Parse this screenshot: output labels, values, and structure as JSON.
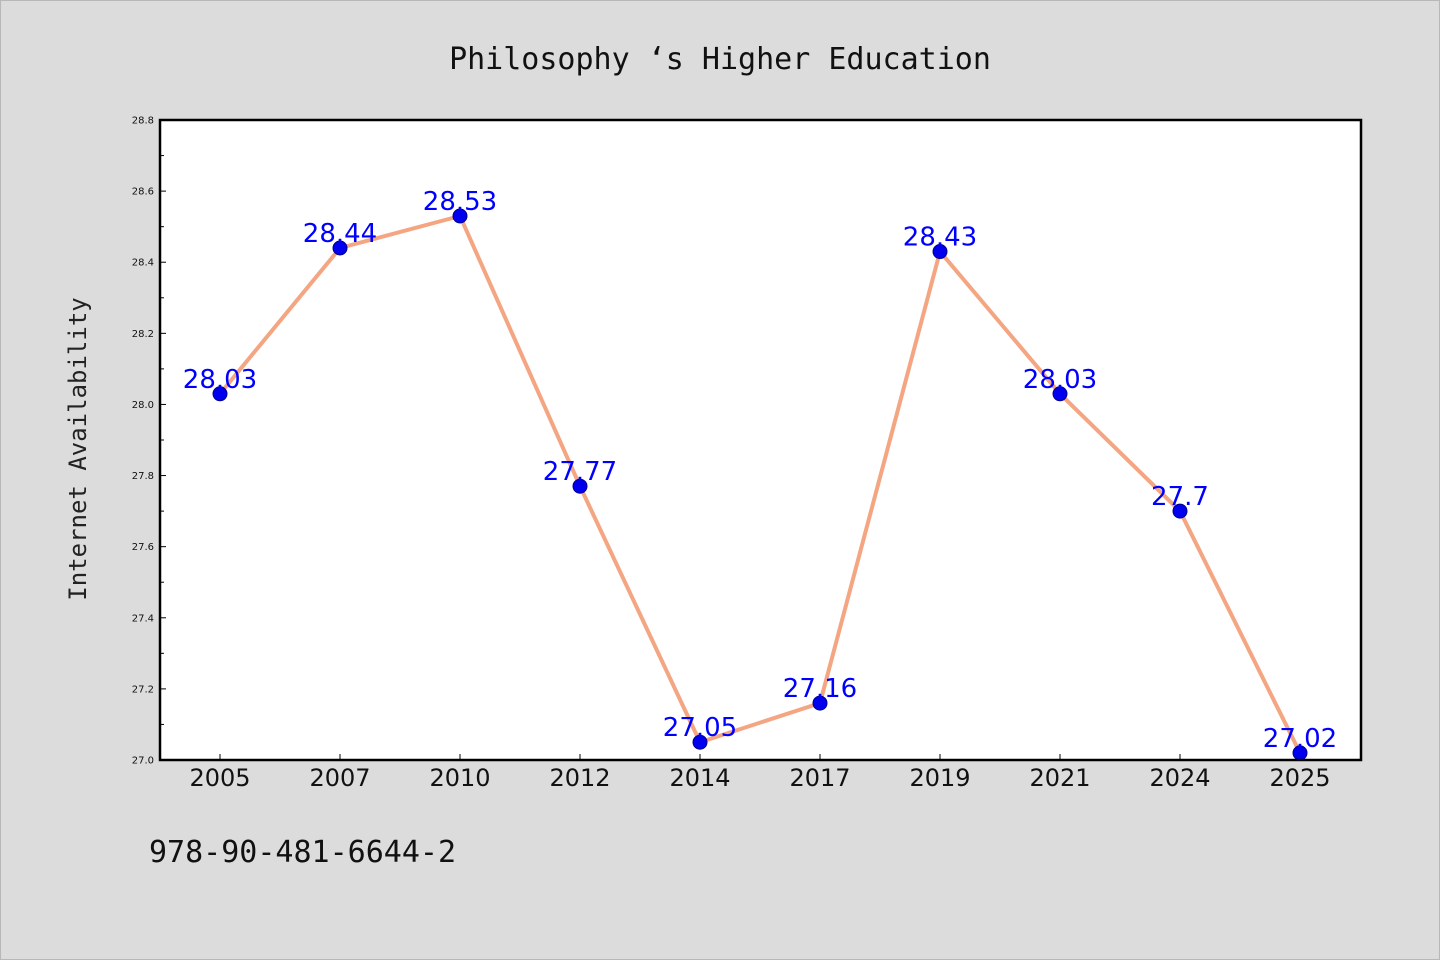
{
  "chart_data": {
    "type": "line",
    "title": "Philosophy ‘s Higher Education",
    "xlabel": "",
    "ylabel": "Internet Availability",
    "categories": [
      "2005",
      "2007",
      "2010",
      "2012",
      "2014",
      "2017",
      "2019",
      "2021",
      "2024",
      "2025"
    ],
    "series": [
      {
        "values": [
          28.03,
          28.44,
          28.53,
          27.77,
          27.05,
          27.16,
          28.43,
          28.03,
          27.7,
          27.02
        ],
        "labels": [
          "28.03",
          "28.44",
          "28.53",
          "27.77",
          "27.05",
          "27.16",
          "28.43",
          "28.03",
          "27.7",
          "27.02"
        ]
      }
    ],
    "ylim": [
      27.0,
      28.8
    ],
    "yticks": [
      "27.0",
      "27.2",
      "27.4",
      "27.6",
      "27.8",
      "28.0",
      "28.2",
      "28.4",
      "28.6",
      "28.8"
    ],
    "grid": false,
    "legend": "none",
    "colors": {
      "line": "#f4a582",
      "marker": "#0000ee",
      "marker_edge": "#00008b",
      "data_label": "#0000ff",
      "plot_background": "#ffffff",
      "figure_background": "#dcdcdc"
    }
  },
  "footer": {
    "code": "978-90-481-6644-2"
  }
}
